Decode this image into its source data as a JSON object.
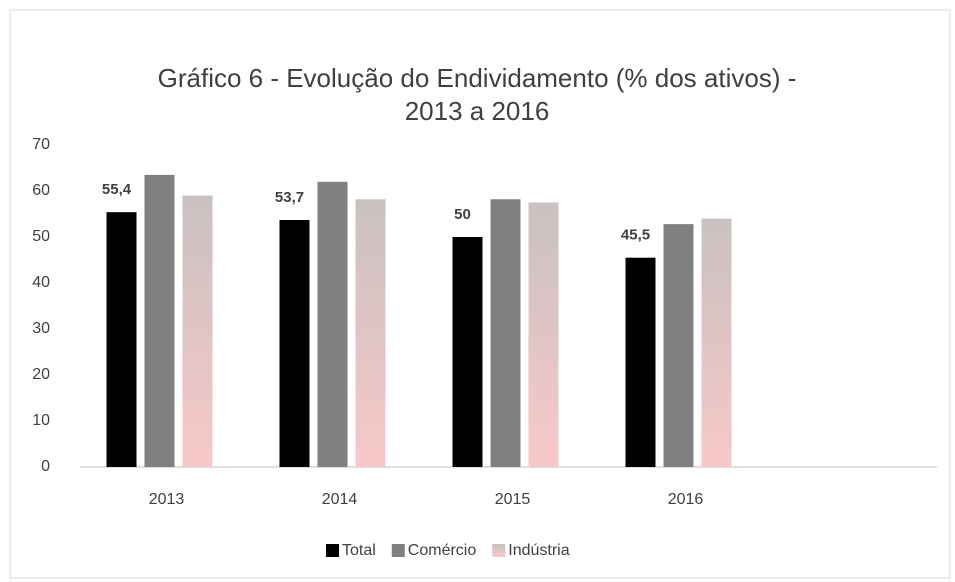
{
  "chart_data": {
    "type": "bar",
    "title": [
      "Gráfico 6 - Evolução do Endividamento (% dos ativos) -",
      "2013 a 2016"
    ],
    "categories": [
      "2013",
      "2014",
      "2015",
      "2016",
      null
    ],
    "series": [
      {
        "name": "Total",
        "color": "#000000",
        "values": [
          55.4,
          53.7,
          50,
          45.5,
          null
        ],
        "value_labels": [
          "55,4",
          "53,7",
          "50",
          "45,5",
          null
        ]
      },
      {
        "name": "Comércio",
        "color": "#808080",
        "values": [
          63.5,
          62,
          58.2,
          52.8,
          null
        ]
      },
      {
        "name": "Indústria",
        "color": "#f4c6c6",
        "values": [
          59,
          58.2,
          57.5,
          54,
          null
        ]
      }
    ],
    "ylim": [
      0,
      70
    ],
    "yticks": [
      0,
      10,
      20,
      30,
      40,
      50,
      60,
      70
    ],
    "grid": false,
    "legend": "bottom"
  }
}
